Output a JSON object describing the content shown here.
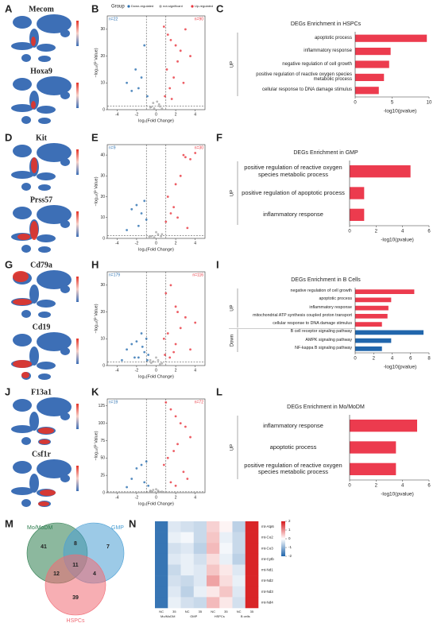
{
  "panel_labels": [
    "A",
    "B",
    "C",
    "D",
    "E",
    "F",
    "G",
    "H",
    "I",
    "J",
    "K",
    "L",
    "M",
    "N"
  ],
  "umap_panels": [
    {
      "genes": [
        "Mecom",
        "Hoxa9"
      ]
    },
    {
      "genes": [
        "Kit",
        "Prss57"
      ]
    },
    {
      "genes": [
        "Cd79a",
        "Cd19"
      ]
    },
    {
      "genes": [
        "F13a1",
        "Csf1r"
      ]
    }
  ],
  "volcano_legend": {
    "title": "Group"
  },
  "volcano_axis": {
    "x_label": "log₂(Fold Change)",
    "y_label": "−log₁₀(P Value)"
  },
  "volcanoes": [
    {
      "type": "scatter",
      "n_down": "n=22",
      "n_up": "n=90",
      "xlim": [
        -5,
        5
      ],
      "xticks": [
        -4,
        -2,
        0,
        2,
        4
      ],
      "ylim": [
        0,
        35
      ],
      "yticks": [
        0,
        10,
        20,
        30
      ],
      "thresholds": {
        "x": [
          -1,
          1
        ],
        "y": [
          1.3
        ]
      },
      "series": [
        {
          "name": "Down-regulated",
          "color": "#2a6fb0",
          "x": [
            -1.2,
            -2.1,
            -1.5,
            -3.0,
            -1.8,
            -0.9,
            -2.5
          ],
          "y": [
            24,
            15,
            12,
            10,
            8,
            5,
            7
          ]
        },
        {
          "name": "not-significant",
          "color": "#a8a8a8",
          "x": [
            -0.5,
            0.3,
            -0.2,
            0.4,
            0.1,
            -0.6,
            0.6,
            -0.3
          ],
          "y": [
            1,
            2,
            0.5,
            1.2,
            3,
            0.8,
            0.4,
            2.5
          ]
        },
        {
          "name": "Up-regulated",
          "color": "#e8363f",
          "x": [
            0.8,
            1.2,
            1.5,
            2.0,
            2.5,
            3.0,
            1.1,
            1.8,
            2.2,
            1.4,
            0.9,
            2.8,
            3.5,
            1.6
          ],
          "y": [
            31,
            28,
            26,
            24,
            22,
            30,
            15,
            12,
            18,
            8,
            5,
            10,
            20,
            4
          ]
        }
      ]
    },
    {
      "type": "scatter",
      "n_down": "n=9",
      "n_up": "n=30",
      "xlim": [
        -5,
        5
      ],
      "xticks": [
        -4,
        -2,
        0,
        2,
        4
      ],
      "ylim": [
        0,
        45
      ],
      "yticks": [
        0,
        10,
        20,
        30,
        40
      ],
      "thresholds": {
        "x": [
          -1,
          1
        ],
        "y": [
          1.3
        ]
      },
      "series": [
        {
          "color": "#2a6fb0",
          "x": [
            -1.5,
            -2,
            -1.2,
            -2.5,
            -1.8,
            -3.0,
            -1.0
          ],
          "y": [
            12,
            16,
            18,
            14,
            6,
            4,
            9
          ]
        },
        {
          "color": "#a8a8a8",
          "x": [
            -0.5,
            0.2,
            -0.2,
            0.5,
            0,
            -0.7,
            0.6
          ],
          "y": [
            1,
            2,
            0.5,
            1,
            3,
            0.8,
            2
          ]
        },
        {
          "color": "#e8363f",
          "x": [
            1,
            1.5,
            2,
            2.5,
            3,
            3.5,
            4,
            2.8,
            1.2,
            1.8,
            2.2,
            3.2
          ],
          "y": [
            8,
            12,
            26,
            30,
            39,
            38,
            41,
            40,
            20,
            15,
            10,
            5
          ]
        }
      ]
    },
    {
      "type": "scatter",
      "n_down": "n=179",
      "n_up": "n=116",
      "xlim": [
        -5,
        5
      ],
      "xticks": [
        -4,
        -2,
        0,
        2,
        4
      ],
      "ylim": [
        0,
        35
      ],
      "yticks": [
        0,
        10,
        20,
        30
      ],
      "thresholds": {
        "x": [
          -1,
          1
        ],
        "y": [
          1.3
        ]
      },
      "series": [
        {
          "color": "#2a6fb0",
          "x": [
            -1,
            -1.5,
            -2,
            -2.5,
            -3,
            -1.2,
            -0.8,
            -1.8,
            -2.2,
            -3.5,
            -1.4,
            -0.9
          ],
          "y": [
            10,
            12,
            9,
            8,
            6,
            5,
            4,
            3,
            3,
            2,
            7,
            2
          ]
        },
        {
          "color": "#a8a8a8",
          "x": [
            -0.5,
            0.2,
            0.4,
            -0.3,
            0,
            0.6,
            -0.6
          ],
          "y": [
            1,
            2,
            0.5,
            1.5,
            3,
            0.8,
            2
          ]
        },
        {
          "color": "#e8363f",
          "x": [
            1,
            1.5,
            2,
            3,
            4,
            2.5,
            1.2,
            0.8,
            2,
            3.5,
            1.8,
            0.9,
            1.4,
            2.2
          ],
          "y": [
            27,
            30,
            22,
            18,
            16,
            14,
            12,
            10,
            8,
            6,
            5,
            4,
            3,
            20
          ]
        }
      ]
    },
    {
      "type": "scatter",
      "n_down": "n=19",
      "n_up": "n=72",
      "xlim": [
        -5,
        5
      ],
      "xticks": [
        -4,
        -2,
        0,
        2,
        4
      ],
      "ylim": [
        0,
        135
      ],
      "yticks": [
        0,
        25,
        50,
        75,
        100,
        125
      ],
      "thresholds": {
        "x": [
          -1,
          1
        ],
        "y": [
          1.3
        ]
      },
      "series": [
        {
          "color": "#2a6fb0",
          "x": [
            -1,
            -1.5,
            -2,
            -2.5,
            -1.2,
            -0.8,
            -3
          ],
          "y": [
            45,
            40,
            35,
            20,
            15,
            10,
            8
          ]
        },
        {
          "color": "#a8a8a8",
          "x": [
            -0.5,
            0.2,
            0.4,
            -0.3,
            0,
            0.6,
            -0.6
          ],
          "y": [
            2,
            3,
            1,
            4,
            5,
            1.5,
            3
          ]
        },
        {
          "color": "#e8363f",
          "x": [
            1,
            1.5,
            2,
            2.5,
            3,
            3.5,
            2.2,
            1.8,
            1.2,
            0.8,
            2.8,
            3.2,
            1.5,
            2
          ],
          "y": [
            130,
            120,
            110,
            100,
            95,
            80,
            70,
            60,
            50,
            40,
            30,
            20,
            15,
            10
          ]
        }
      ]
    }
  ],
  "enrichment": [
    {
      "type": "bar",
      "title": "DEGs Enrichment in HSPCs",
      "x_label": "-log10(pvalue)",
      "xlim": [
        0,
        10
      ],
      "xticks": [
        0,
        5,
        10
      ],
      "groups": [
        {
          "name": "UP",
          "color": "#ec3b4e",
          "terms": [
            "apoptotic process",
            "inflammatory response",
            "negative regulation of cell growth",
            "positive regulation of reactive oxygen species metabolic process",
            "cellular response to DNA damage stimulus"
          ],
          "values": [
            9.7,
            4.8,
            4.6,
            3.9,
            3.2
          ]
        }
      ]
    },
    {
      "type": "bar",
      "title": "DEGs Enrichment in GMP",
      "x_label": "-log10(pvalue)",
      "xlim": [
        0,
        6
      ],
      "xticks": [
        0,
        2,
        4,
        6
      ],
      "groups": [
        {
          "name": "UP",
          "color": "#ec3b4e",
          "terms": [
            "positive regulation of reactive oxygen species metabolic process",
            "positive regulation of apoptotic process",
            "inflammatory response"
          ],
          "values": [
            4.6,
            1.1,
            1.1
          ]
        }
      ]
    },
    {
      "type": "bar",
      "title": "DEGs Enrichment in B Cells",
      "x_label": "-log10(pvalue)",
      "xlim": [
        0,
        8
      ],
      "xticks": [
        0,
        2,
        4,
        6,
        8
      ],
      "groups": [
        {
          "name": "UP",
          "color": "#ec3b4e",
          "terms": [
            "negative regulation of cell growth",
            "apoptotic process",
            "inflammatory response",
            "mitochondrial ATP synthesis coupled proton transport",
            "cellular response to DNA damage stimulus"
          ],
          "values": [
            6.4,
            3.9,
            3.6,
            3.5,
            2.9
          ]
        },
        {
          "name": "Down",
          "color": "#2166ac",
          "terms": [
            "B cell receptor signaling pathway",
            "AMPK signaling pathway",
            "NF-kappa B signaling pathway"
          ],
          "values": [
            7.4,
            3.9,
            2.9
          ]
        }
      ]
    },
    {
      "type": "bar",
      "title": "DEGs Enrichment in Mo/MoDM",
      "x_label": "-log10(pvalue)",
      "xlim": [
        0,
        6
      ],
      "xticks": [
        0,
        2,
        4,
        6
      ],
      "groups": [
        {
          "name": "UP",
          "color": "#ec3b4e",
          "terms": [
            "inflammatory response",
            "apoptotic process",
            "positive regulation of reactive oxygen species metabolic process"
          ],
          "values": [
            5.1,
            3.5,
            3.5
          ]
        }
      ]
    }
  ],
  "venn": {
    "sets": [
      "Mo/MoDM",
      "GMP",
      "HSPCs"
    ],
    "colors": [
      "#2e7d4f",
      "#4a9fd4",
      "#f06b75"
    ],
    "counts": [
      41,
      8,
      7,
      12,
      11,
      4,
      39
    ]
  },
  "heatmap": {
    "type": "heatmap",
    "rows": [
      "mt-Atp6",
      "mt-Co2",
      "mt-Co3",
      "mt-Cytb",
      "mt-Nd1",
      "mt-Nd2",
      "mt-Nd3",
      "mt-Nd4"
    ],
    "column_labels": [
      "NC",
      "35",
      "NC",
      "35",
      "NC",
      "35",
      "NC",
      "35"
    ],
    "column_groups": [
      "Mo/MoDM",
      "GMP",
      "HSPCs",
      "B cells"
    ],
    "zlim": [
      -2,
      2
    ],
    "zticks": [
      2,
      1,
      0,
      -1,
      -2
    ],
    "values": [
      [
        -1.8,
        -0.3,
        -0.4,
        -0.5,
        0.4,
        0.1,
        -0.6,
        1.9
      ],
      [
        -1.8,
        -0.2,
        -0.1,
        -0.5,
        0.5,
        -0.2,
        -0.5,
        1.9
      ],
      [
        -1.8,
        -0.4,
        -0.3,
        -0.6,
        0.6,
        -0.1,
        -0.5,
        1.9
      ],
      [
        -1.8,
        -0.3,
        -0.2,
        -0.4,
        0.3,
        -0.2,
        -0.6,
        1.9
      ],
      [
        -1.8,
        -0.5,
        -0.2,
        -0.3,
        0.5,
        0.2,
        -0.3,
        1.9
      ],
      [
        -1.8,
        -0.4,
        -0.5,
        -0.3,
        0.8,
        0.3,
        -0.2,
        1.9
      ],
      [
        -1.8,
        -0.3,
        -0.6,
        -0.2,
        0.2,
        0.5,
        -0.3,
        1.9
      ],
      [
        -1.8,
        -0.2,
        -0.4,
        -0.5,
        0.6,
        0.2,
        -0.4,
        1.9
      ]
    ]
  }
}
